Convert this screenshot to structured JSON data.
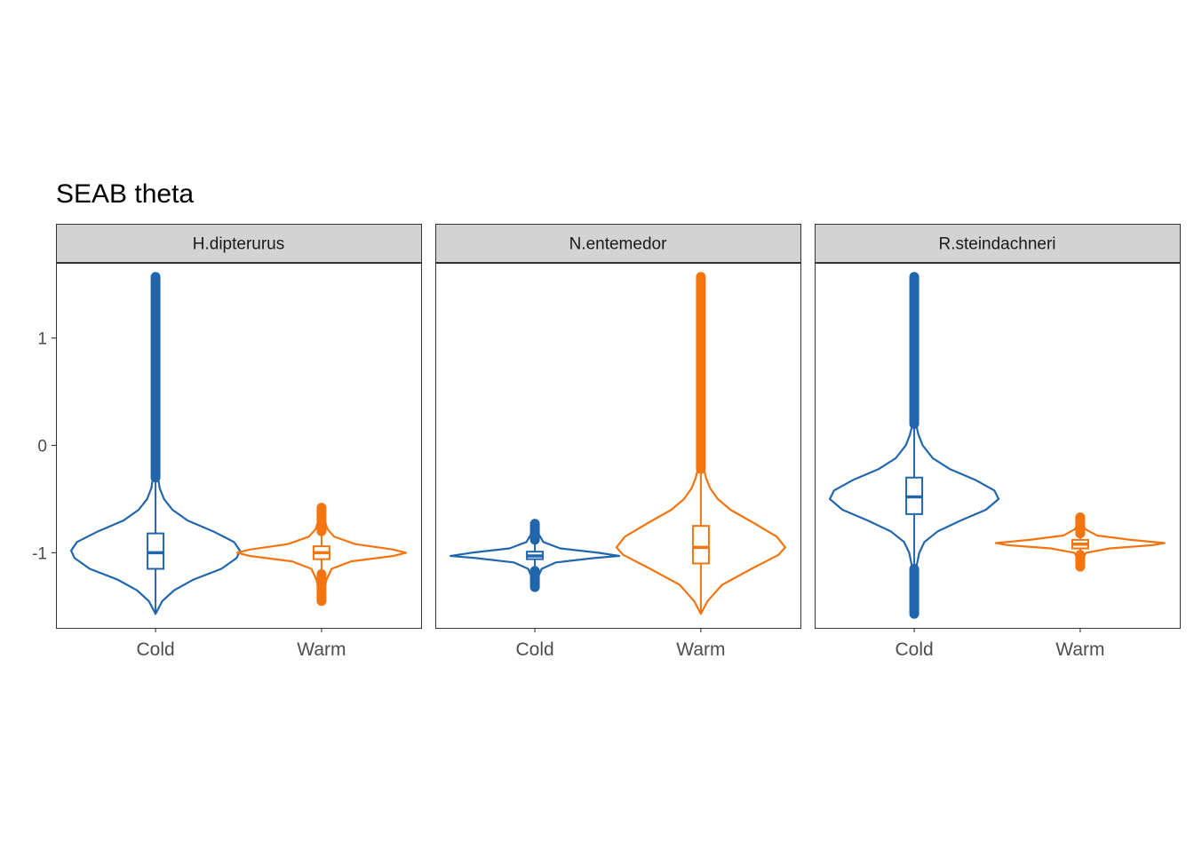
{
  "chart_data": {
    "type": "violin",
    "title": "SEAB theta",
    "xlabel": "",
    "ylabel": "",
    "ylim": [
      -1.7,
      1.7
    ],
    "yticks": [
      -1,
      0,
      1
    ],
    "ytick_labels": [
      "-1",
      "0",
      "1"
    ],
    "categories": [
      "Cold",
      "Warm"
    ],
    "grid": false,
    "legend": "none",
    "colors": {
      "Cold": "#2166ac",
      "Warm": "#f4740f"
    },
    "panels": [
      {
        "label": "H.dipterurus",
        "groups": [
          {
            "category": "Cold",
            "violin_min": -1.57,
            "violin_max": 1.57,
            "box": {
              "q1": -1.15,
              "median": -1.0,
              "q3": -0.82
            },
            "whisker_low": -1.57,
            "whisker_high": -0.3,
            "outliers": [
              {
                "from": -0.3,
                "to": 1.57
              }
            ],
            "density": [
              [
                -1.57,
                0.0
              ],
              [
                -1.45,
                0.08
              ],
              [
                -1.35,
                0.22
              ],
              [
                -1.25,
                0.45
              ],
              [
                -1.15,
                0.78
              ],
              [
                -1.05,
                0.96
              ],
              [
                -0.98,
                1.0
              ],
              [
                -0.9,
                0.93
              ],
              [
                -0.8,
                0.68
              ],
              [
                -0.7,
                0.38
              ],
              [
                -0.6,
                0.2
              ],
              [
                -0.5,
                0.1
              ],
              [
                -0.4,
                0.05
              ],
              [
                -0.3,
                0.03
              ],
              [
                0.0,
                0.015
              ],
              [
                0.5,
                0.008
              ],
              [
                1.57,
                0.0
              ]
            ]
          },
          {
            "category": "Warm",
            "violin_min": -1.45,
            "violin_max": -0.58,
            "box": {
              "q1": -1.06,
              "median": -1.0,
              "q3": -0.94
            },
            "whisker_low": -1.2,
            "whisker_high": -0.8,
            "outliers": [
              {
                "from": -1.45,
                "to": -1.2
              },
              {
                "from": -0.8,
                "to": -0.58
              }
            ],
            "density": [
              [
                -1.45,
                0.0
              ],
              [
                -1.35,
                0.03
              ],
              [
                -1.25,
                0.06
              ],
              [
                -1.15,
                0.12
              ],
              [
                -1.08,
                0.35
              ],
              [
                -1.03,
                0.85
              ],
              [
                -1.0,
                1.0
              ],
              [
                -0.97,
                0.85
              ],
              [
                -0.92,
                0.4
              ],
              [
                -0.85,
                0.15
              ],
              [
                -0.78,
                0.07
              ],
              [
                -0.68,
                0.03
              ],
              [
                -0.58,
                0.0
              ]
            ]
          }
        ]
      },
      {
        "label": "N.entemedor",
        "groups": [
          {
            "category": "Cold",
            "violin_min": -1.32,
            "violin_max": -0.73,
            "box": {
              "q1": -1.06,
              "median": -1.03,
              "q3": -0.99
            },
            "whisker_low": -1.17,
            "whisker_high": -0.88,
            "outliers": [
              {
                "from": -1.32,
                "to": -1.17
              },
              {
                "from": -0.88,
                "to": -0.73
              }
            ],
            "density": [
              [
                -1.32,
                0.0
              ],
              [
                -1.22,
                0.04
              ],
              [
                -1.15,
                0.08
              ],
              [
                -1.09,
                0.25
              ],
              [
                -1.05,
                0.7
              ],
              [
                -1.03,
                1.0
              ],
              [
                -1.0,
                0.75
              ],
              [
                -0.96,
                0.3
              ],
              [
                -0.9,
                0.1
              ],
              [
                -0.82,
                0.04
              ],
              [
                -0.73,
                0.0
              ]
            ]
          },
          {
            "category": "Warm",
            "violin_min": -1.57,
            "violin_max": 1.57,
            "box": {
              "q1": -1.1,
              "median": -0.95,
              "q3": -0.75
            },
            "whisker_low": -1.57,
            "whisker_high": -0.22,
            "outliers": [
              {
                "from": -0.22,
                "to": 1.57
              }
            ],
            "density": [
              [
                -1.57,
                0.0
              ],
              [
                -1.45,
                0.08
              ],
              [
                -1.3,
                0.25
              ],
              [
                -1.15,
                0.6
              ],
              [
                -1.02,
                0.92
              ],
              [
                -0.95,
                1.0
              ],
              [
                -0.85,
                0.9
              ],
              [
                -0.72,
                0.62
              ],
              [
                -0.6,
                0.35
              ],
              [
                -0.5,
                0.2
              ],
              [
                -0.4,
                0.11
              ],
              [
                -0.3,
                0.06
              ],
              [
                -0.2,
                0.03
              ],
              [
                0.5,
                0.012
              ],
              [
                1.57,
                0.0
              ]
            ]
          }
        ]
      },
      {
        "label": "R.steindachneri",
        "groups": [
          {
            "category": "Cold",
            "violin_min": -1.57,
            "violin_max": 1.57,
            "box": {
              "q1": -0.64,
              "median": -0.48,
              "q3": -0.3
            },
            "whisker_low": -1.15,
            "whisker_high": 0.2,
            "outliers": [
              {
                "from": -1.57,
                "to": -1.15
              },
              {
                "from": 0.2,
                "to": 1.57
              }
            ],
            "density": [
              [
                -1.57,
                0.0
              ],
              [
                -1.3,
                0.01
              ],
              [
                -1.15,
                0.02
              ],
              [
                -1.0,
                0.06
              ],
              [
                -0.9,
                0.12
              ],
              [
                -0.8,
                0.28
              ],
              [
                -0.7,
                0.55
              ],
              [
                -0.6,
                0.85
              ],
              [
                -0.5,
                1.0
              ],
              [
                -0.42,
                0.95
              ],
              [
                -0.32,
                0.72
              ],
              [
                -0.22,
                0.42
              ],
              [
                -0.12,
                0.22
              ],
              [
                0.0,
                0.1
              ],
              [
                0.1,
                0.05
              ],
              [
                0.2,
                0.02
              ],
              [
                0.6,
                0.01
              ],
              [
                1.57,
                0.0
              ]
            ]
          },
          {
            "category": "Warm",
            "violin_min": -1.13,
            "violin_max": -0.67,
            "box": {
              "q1": -0.96,
              "median": -0.92,
              "q3": -0.88
            },
            "whisker_low": -1.02,
            "whisker_high": -0.82,
            "outliers": [
              {
                "from": -1.13,
                "to": -1.02
              },
              {
                "from": -0.82,
                "to": -0.67
              }
            ],
            "density": [
              [
                -1.13,
                0.0
              ],
              [
                -1.05,
                0.03
              ],
              [
                -1.0,
                0.07
              ],
              [
                -0.96,
                0.35
              ],
              [
                -0.93,
                0.85
              ],
              [
                -0.91,
                1.0
              ],
              [
                -0.88,
                0.6
              ],
              [
                -0.84,
                0.2
              ],
              [
                -0.78,
                0.06
              ],
              [
                -0.72,
                0.02
              ],
              [
                -0.67,
                0.0
              ]
            ]
          }
        ]
      }
    ]
  }
}
